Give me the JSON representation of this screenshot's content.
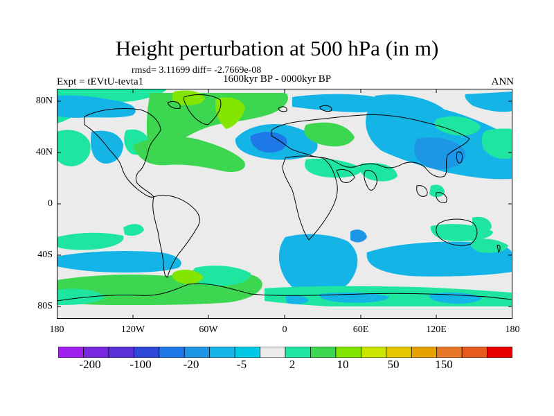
{
  "title": "Height perturbation at 500 hPa (in m)",
  "stats": "rmsd= 3.11699 diff= -2.7669e-08",
  "period": "1600kyr BP - 0000kyr BP",
  "experiment": "Expt = tEVtU-tevta1",
  "season": "ANN",
  "lat_ticks": [
    "80N",
    "40N",
    "0",
    "40S",
    "80S"
  ],
  "lon_ticks": [
    "180",
    "120W",
    "60W",
    "0",
    "60E",
    "120E",
    "180"
  ],
  "colorbar": {
    "colors": [
      "#a020f0",
      "#7a28e0",
      "#5a30d8",
      "#3048d8",
      "#1e78e8",
      "#1e96e6",
      "#14b4e6",
      "#00c8e6",
      "#ebebeb",
      "#1ee6a0",
      "#3cd650",
      "#82e600",
      "#c8e600",
      "#e6c800",
      "#e6a000",
      "#e67828",
      "#e65a1e",
      "#e60000"
    ],
    "labels": [
      "-200",
      "-100",
      "-20",
      "-5",
      "2",
      "10",
      "50",
      "150"
    ]
  },
  "palette": {
    "land_bg": "#ebebeb",
    "light_blue": "#14b4e6",
    "mid_blue": "#1e96e6",
    "blue": "#1e78e8",
    "light_green": "#1ee6a0",
    "green": "#3cd650",
    "lime": "#82e600",
    "coast": "#000000"
  }
}
